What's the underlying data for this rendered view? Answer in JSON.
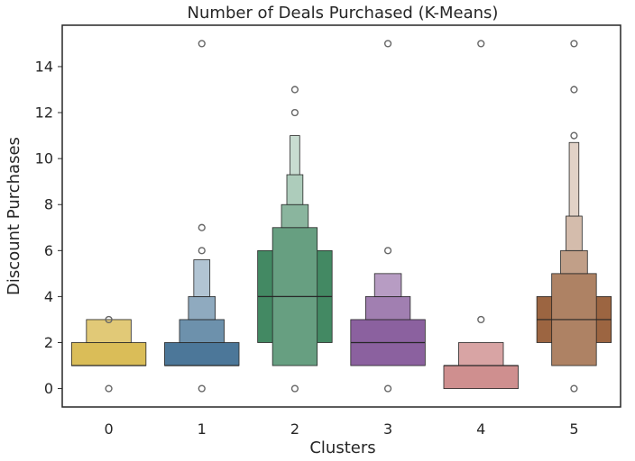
{
  "chart_data": {
    "type": "boxen",
    "title": "Number of Deals Purchased (K-Means)",
    "xlabel": "Clusters",
    "ylabel": "Discount Purchases",
    "categories": [
      "0",
      "1",
      "2",
      "3",
      "4",
      "5"
    ],
    "ylim": [
      -0.8,
      15.8
    ],
    "yticks": [
      0,
      2,
      4,
      6,
      8,
      10,
      12,
      14
    ],
    "grid": false,
    "series": [
      {
        "category": "0",
        "color": "#d4b13a",
        "median": 1,
        "levels": [
          [
            1,
            2
          ],
          [
            2,
            3
          ]
        ],
        "outliers": [
          0,
          3
        ]
      },
      {
        "category": "1",
        "color": "#2c5f87",
        "median": 1,
        "levels": [
          [
            1,
            2
          ],
          [
            2,
            3
          ],
          [
            3,
            4
          ],
          [
            4,
            5.6
          ]
        ],
        "outliers": [
          0,
          6,
          7,
          15
        ]
      },
      {
        "category": "2",
        "color": "#227448",
        "median": 4,
        "levels": [
          [
            2,
            6
          ],
          [
            1,
            7
          ],
          [
            7,
            8
          ],
          [
            8,
            9.3
          ],
          [
            9.3,
            11
          ]
        ],
        "outliers": [
          0,
          12,
          13
        ]
      },
      {
        "category": "3",
        "color": "#77458e",
        "median": 2,
        "levels": [
          [
            1,
            3
          ],
          [
            3,
            4
          ],
          [
            4,
            5
          ]
        ],
        "outliers": [
          0,
          6,
          15
        ]
      },
      {
        "category": "4",
        "color": "#c77b7b",
        "median": 1,
        "levels": [
          [
            0,
            1
          ],
          [
            1,
            2
          ]
        ],
        "outliers": [
          3,
          15
        ]
      },
      {
        "category": "5",
        "color": "#8a4a1f",
        "median": 3,
        "levels": [
          [
            2,
            4
          ],
          [
            1,
            5
          ],
          [
            5,
            6
          ],
          [
            6,
            7.5
          ],
          [
            7.5,
            10.7
          ]
        ],
        "outliers": [
          0,
          11,
          13,
          15
        ]
      }
    ]
  }
}
